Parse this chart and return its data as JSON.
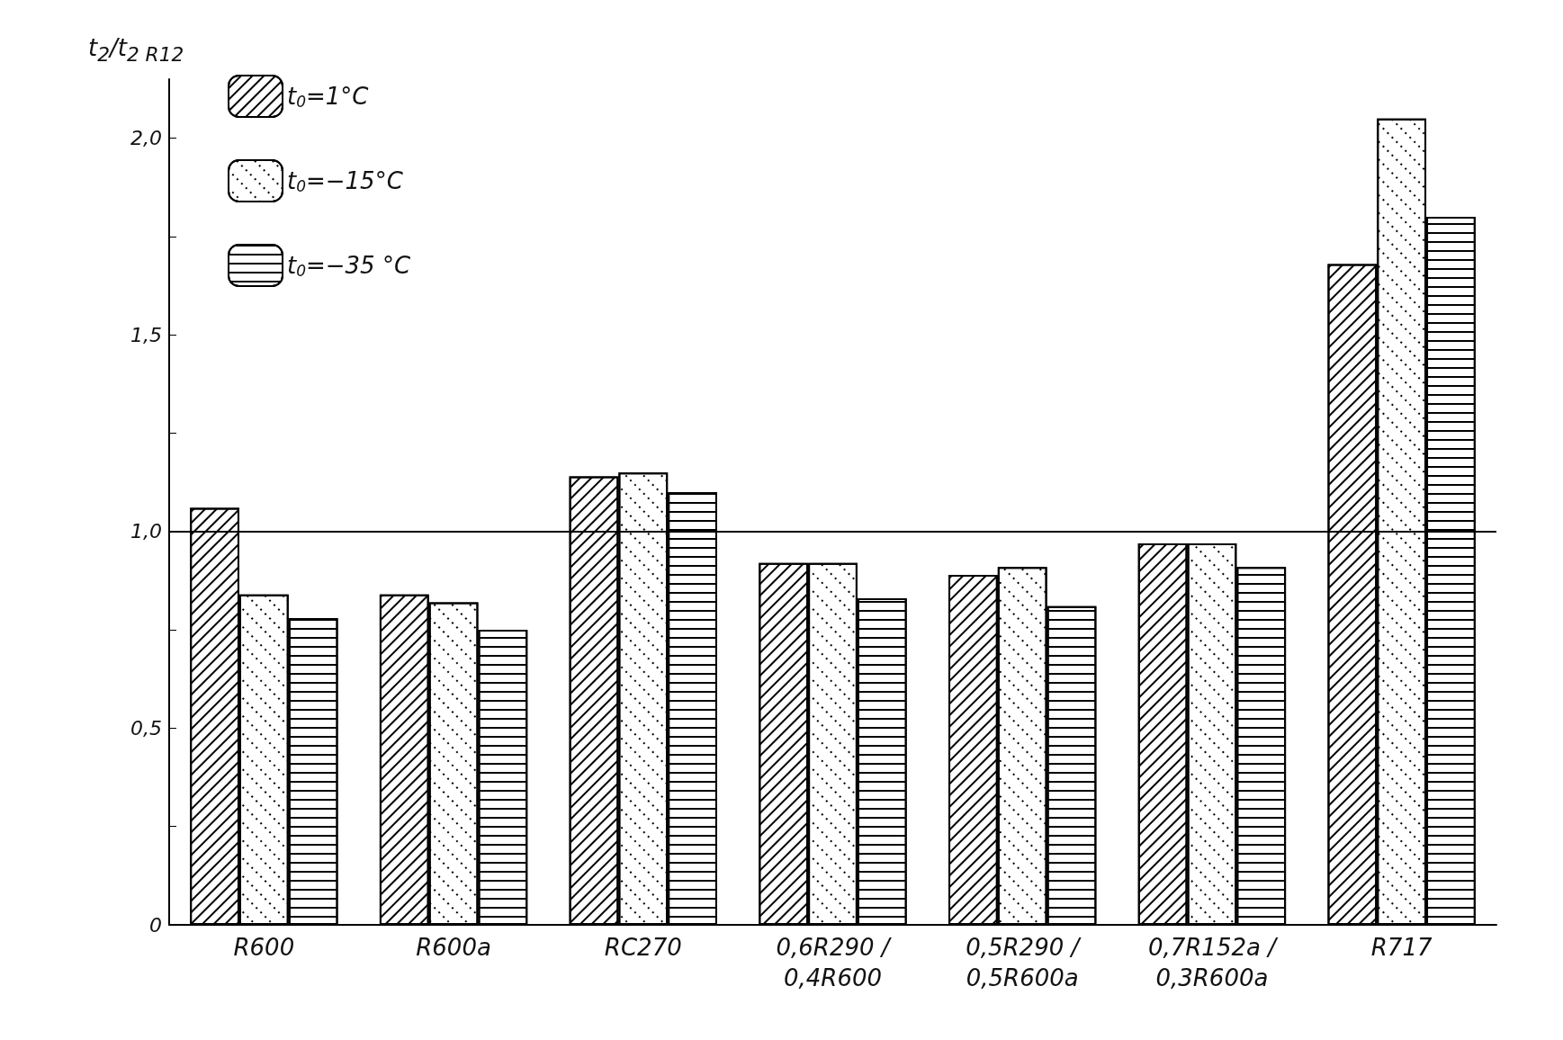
{
  "chart_data": {
    "type": "bar",
    "ylabel": "t$_{2}$/t$_{2 R12}$",
    "categories": [
      "R600",
      "R600a",
      "RC270",
      "0,6R290 / 0,4R600",
      "0,5R290 / 0,5R600a",
      "0,7R152a / 0,3R600a",
      "R717"
    ],
    "series": [
      {
        "name": "t$_{0}$=1°C",
        "color": "#ffffff",
        "values": [
          1.06,
          0.84,
          1.14,
          0.92,
          0.89,
          0.97,
          1.68
        ]
      },
      {
        "name": "t$_{0}$=−15°C",
        "color": "#ffffff",
        "values": [
          0.84,
          0.82,
          1.15,
          0.92,
          0.91,
          0.97,
          2.05
        ]
      },
      {
        "name": "t$_{0}$=−35 °C",
        "color": "#ffffff",
        "values": [
          0.78,
          0.75,
          1.1,
          0.83,
          0.81,
          0.91,
          1.8
        ]
      }
    ],
    "ylim": [
      0,
      2.15
    ],
    "yticks": [
      {
        "value": 0,
        "label": "0"
      },
      {
        "value": 0.25,
        "label": null
      },
      {
        "value": 0.5,
        "label": "0,5"
      },
      {
        "value": 0.75,
        "label": null
      },
      {
        "value": 1,
        "label": "1,0"
      },
      {
        "value": 1.25,
        "label": null
      },
      {
        "value": 1.5,
        "label": "1,5"
      },
      {
        "value": 1.75,
        "label": null
      },
      {
        "value": 2,
        "label": "2,0"
      }
    ],
    "ref_lines": [
      {
        "axis": "y",
        "value": 1,
        "label": null,
        "color": "#000000"
      }
    ],
    "grid": false,
    "legend": "top left"
  }
}
